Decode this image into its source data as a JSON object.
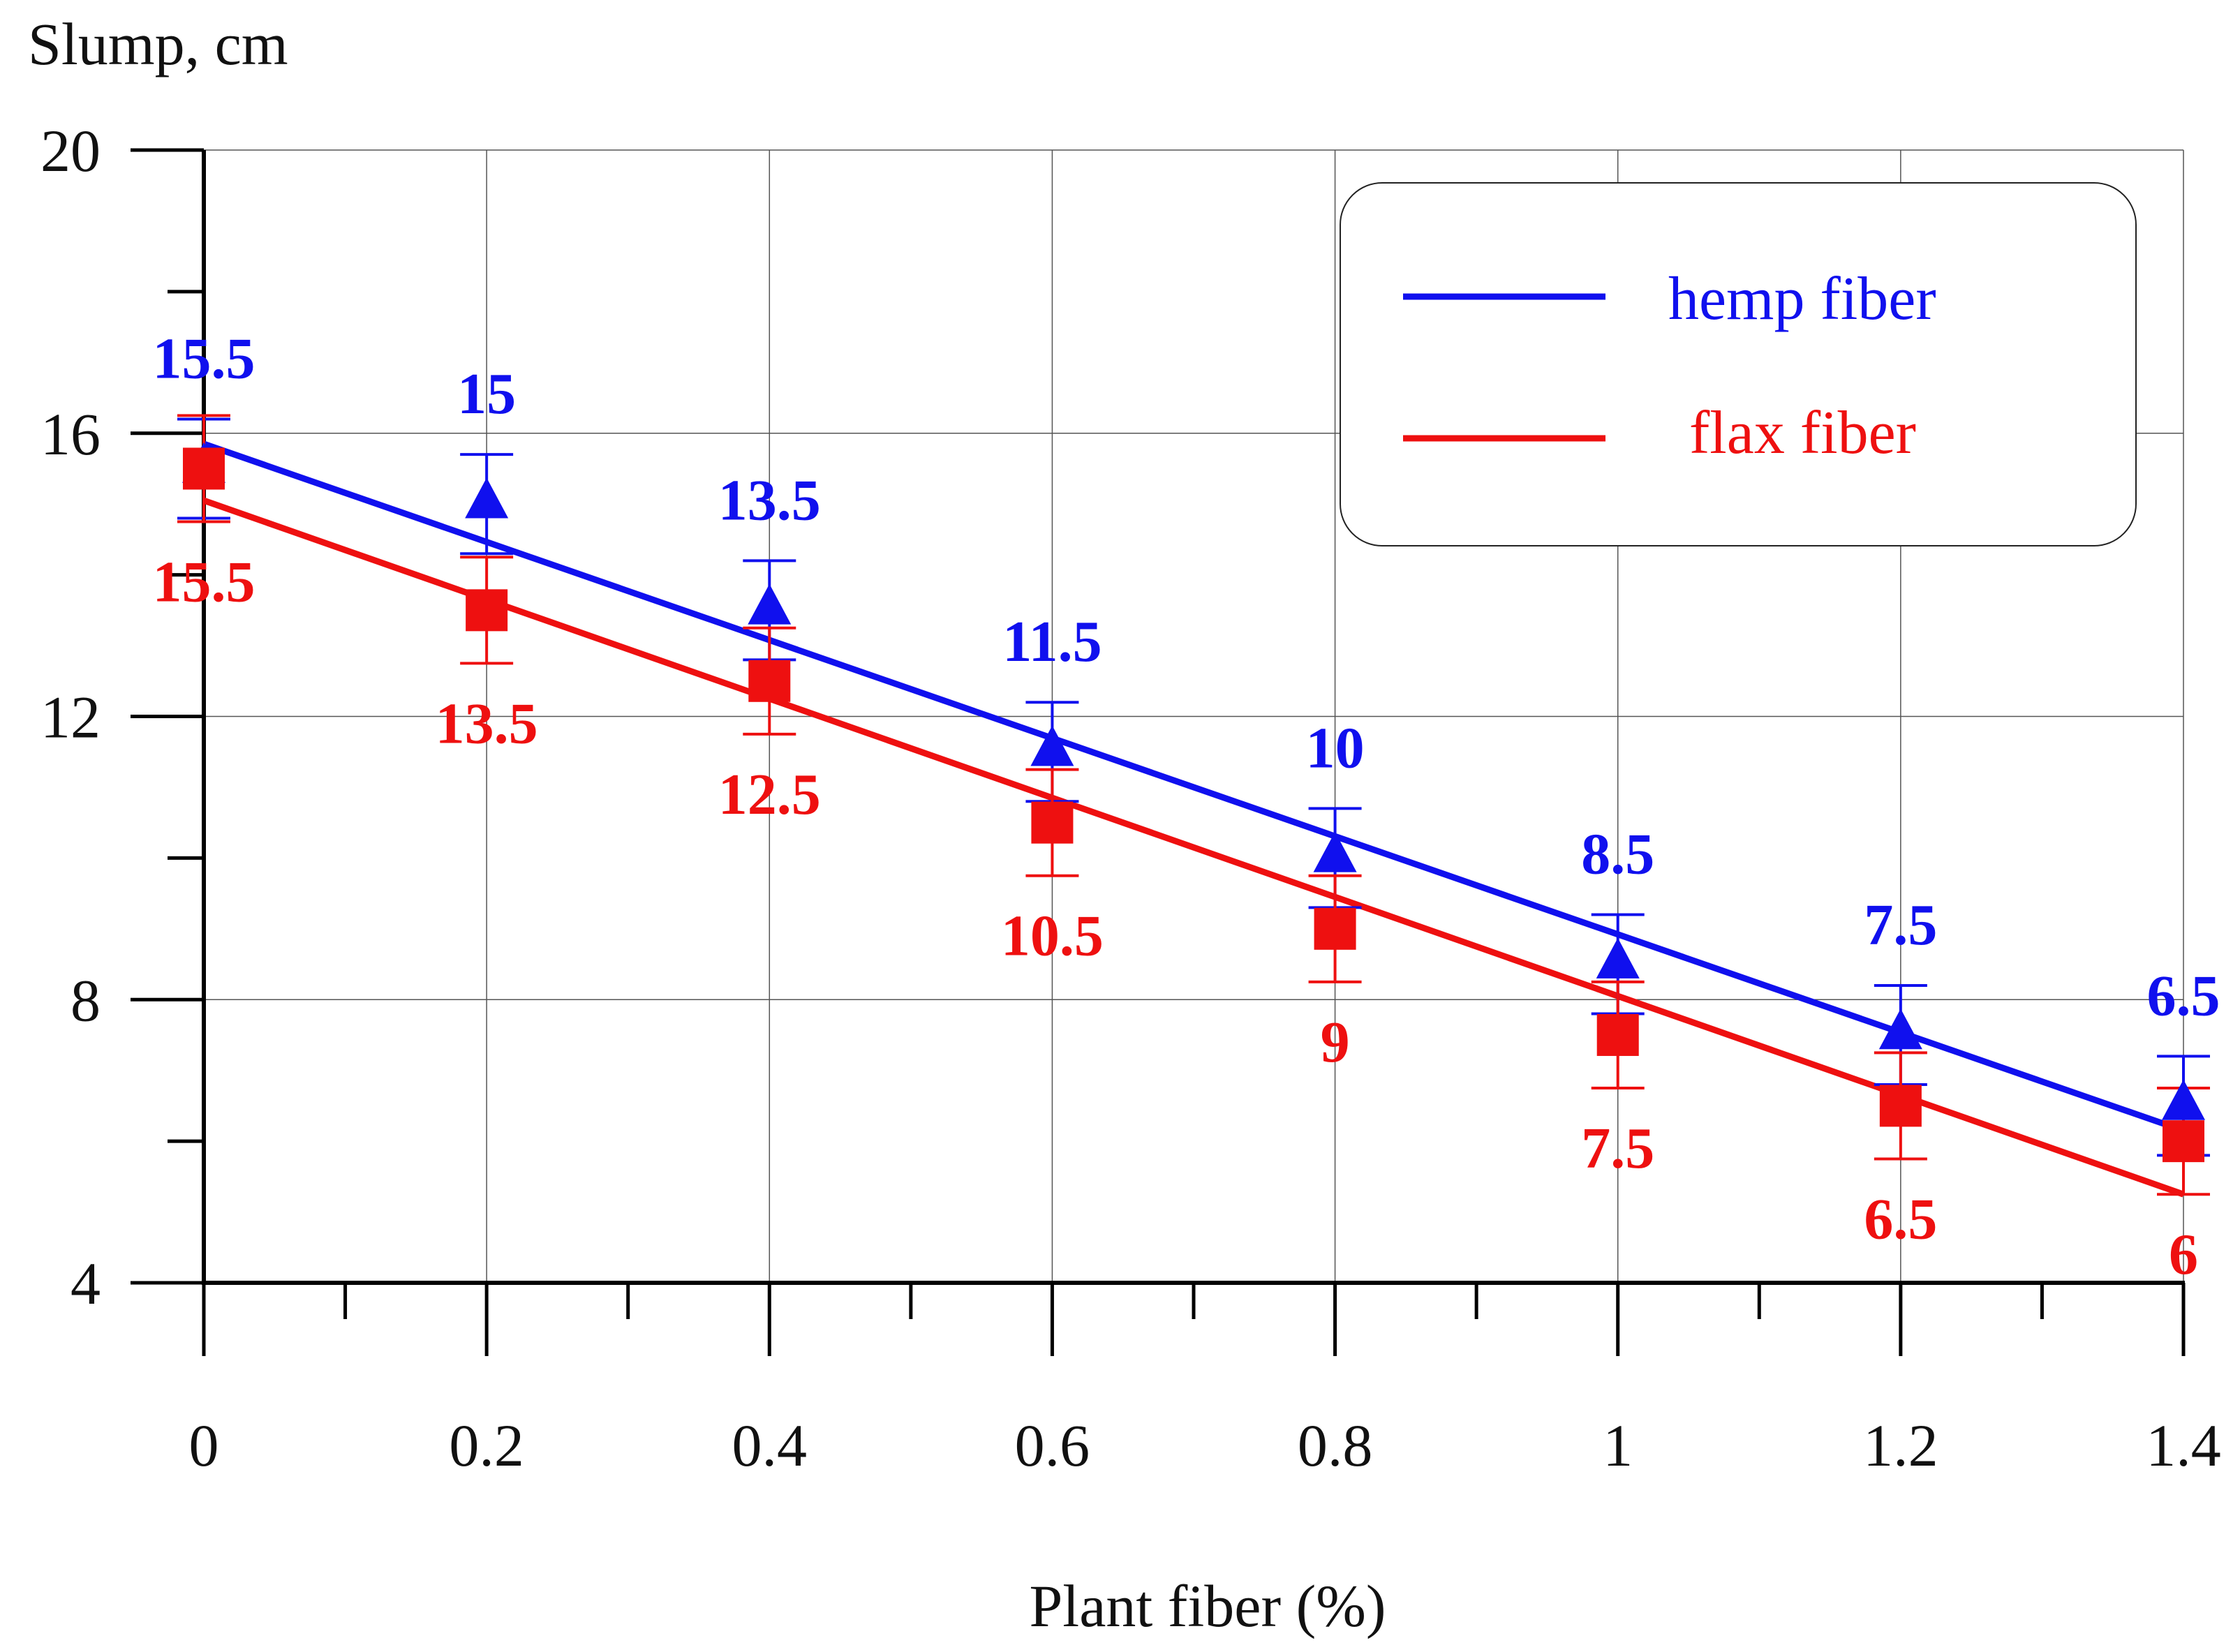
{
  "chart_data": {
    "type": "line",
    "title": "",
    "ylabel": "Slump, cm",
    "xlabel": "Plant fiber (%)",
    "x": [
      0,
      0.2,
      0.4,
      0.6,
      0.8,
      1,
      1.2,
      1.4
    ],
    "x_tick_labels": [
      "0",
      "0.2",
      "0.4",
      "0.6",
      "0.8",
      "1",
      "1.2",
      "1.4"
    ],
    "y_tick_labels": [
      "4",
      "8",
      "12",
      "16",
      "20"
    ],
    "xlim": [
      0,
      1.4
    ],
    "ylim": [
      4,
      20
    ],
    "grid": true,
    "legend_position": "top-right",
    "series": [
      {
        "name": "hemp fiber",
        "color": "#1010ee",
        "marker": "triangle",
        "values": [
          15.5,
          15,
          13.5,
          11.5,
          10,
          8.5,
          7.5,
          6.5
        ],
        "labels": [
          "15.5",
          "15",
          "13.5",
          "11.5",
          "10",
          "8.5",
          "7.5",
          "6.5"
        ],
        "error": 0.7,
        "trend": [
          15.85,
          6.15
        ]
      },
      {
        "name": "flax fiber",
        "color": "#ee1010",
        "marker": "square",
        "values": [
          15.5,
          13.5,
          12.5,
          10.5,
          9,
          7.5,
          6.5,
          6
        ],
        "labels": [
          "15.5",
          "13.5",
          "12.5",
          "10.5",
          "9",
          "7.5",
          "6.5",
          "6"
        ],
        "error": 0.75,
        "trend": [
          15.05,
          5.25
        ]
      }
    ]
  }
}
